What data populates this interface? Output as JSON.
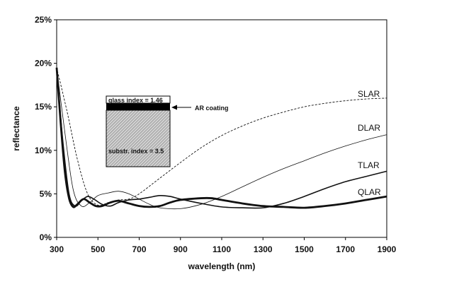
{
  "chart_data": {
    "type": "line",
    "xlabel": "wavelength (nm)",
    "ylabel": "reflectance",
    "xlim": [
      300,
      1900
    ],
    "ylim": [
      0,
      25
    ],
    "x_ticks": [
      "300",
      "500",
      "700",
      "900",
      "1100",
      "1300",
      "1500",
      "1700",
      "1900"
    ],
    "y_ticks": [
      "0%",
      "5%",
      "10%",
      "15%",
      "20%",
      "25%"
    ],
    "grid": false,
    "series": [
      {
        "name": "SLAR",
        "style": "dashed",
        "x": [
          300,
          350,
          400,
          450,
          500,
          550,
          600,
          650,
          700,
          800,
          900,
          1000,
          1100,
          1200,
          1300,
          1400,
          1500,
          1600,
          1700,
          1800,
          1900
        ],
        "y": [
          19.5,
          14.5,
          9.0,
          5.0,
          3.7,
          4.0,
          4.3,
          4.4,
          5.0,
          6.8,
          8.6,
          10.3,
          11.7,
          12.8,
          13.7,
          14.4,
          15.0,
          15.4,
          15.7,
          15.9,
          16.0
        ]
      },
      {
        "name": "DLAR",
        "style": "thin",
        "x": [
          300,
          340,
          380,
          420,
          460,
          500,
          550,
          600,
          650,
          700,
          750,
          800,
          900,
          1000,
          1100,
          1200,
          1300,
          1400,
          1500,
          1600,
          1700,
          1800,
          1900
        ],
        "y": [
          19.5,
          12.0,
          5.5,
          3.6,
          4.0,
          4.8,
          5.1,
          5.3,
          5.0,
          4.4,
          3.8,
          3.4,
          3.3,
          3.8,
          4.7,
          5.8,
          6.9,
          7.9,
          8.8,
          9.7,
          10.5,
          11.2,
          11.8
        ]
      },
      {
        "name": "TLAR",
        "style": "medium",
        "x": [
          300,
          330,
          360,
          390,
          420,
          450,
          480,
          520,
          560,
          600,
          650,
          700,
          750,
          800,
          850,
          900,
          1000,
          1100,
          1200,
          1300,
          1400,
          1500,
          1600,
          1700,
          1800,
          1900
        ],
        "y": [
          19.3,
          11.0,
          5.0,
          3.6,
          4.2,
          4.7,
          4.4,
          3.8,
          3.6,
          4.0,
          4.3,
          4.4,
          4.6,
          4.8,
          4.7,
          4.4,
          3.9,
          3.5,
          3.4,
          3.4,
          3.9,
          4.7,
          5.6,
          6.4,
          7.0,
          7.6
        ]
      },
      {
        "name": "QLAR",
        "style": "thick",
        "x": [
          300,
          320,
          340,
          360,
          380,
          400,
          430,
          460,
          490,
          520,
          560,
          600,
          650,
          700,
          750,
          800,
          850,
          900,
          1000,
          1050,
          1100,
          1200,
          1300,
          1400,
          1500,
          1600,
          1700,
          1800,
          1900
        ],
        "y": [
          19.5,
          13.0,
          7.5,
          4.5,
          3.5,
          3.8,
          4.4,
          4.0,
          3.6,
          3.6,
          4.0,
          4.2,
          3.9,
          3.6,
          3.5,
          3.6,
          4.0,
          4.3,
          4.5,
          4.5,
          4.3,
          3.9,
          3.6,
          3.5,
          3.4,
          3.6,
          3.9,
          4.3,
          4.7
        ]
      }
    ],
    "inset": {
      "glass_label": "glass index = 1.46",
      "substrate_label": "substr. index = 3.5",
      "arrow_label": "AR coating"
    }
  }
}
